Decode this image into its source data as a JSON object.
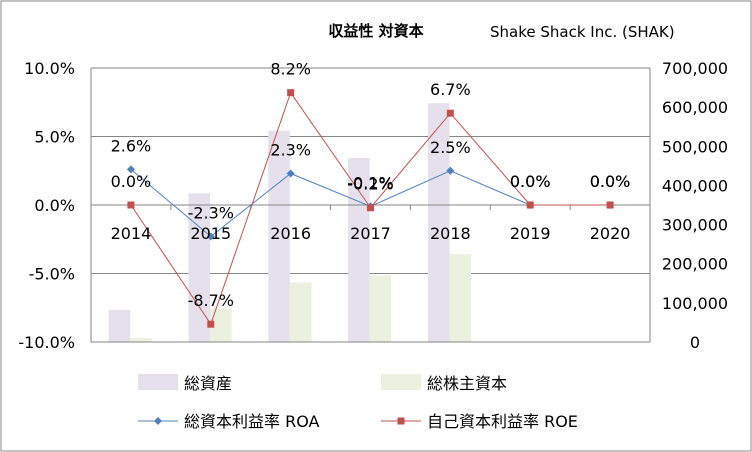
{
  "chart_data": {
    "type": "bar+line",
    "title": "収益性 対資本",
    "company": "Shake Shack Inc. (SHAK)",
    "categories": [
      "2014",
      "2015",
      "2016",
      "2017",
      "2018",
      "2019",
      "2020"
    ],
    "left_axis": {
      "min": -10.0,
      "max": 10.0,
      "step": 5.0,
      "tick_labels": [
        "10.0%",
        "5.0%",
        "0.0%",
        "-5.0%",
        "-10.0%"
      ]
    },
    "right_axis": {
      "min": 0,
      "max": 700000,
      "step": 100000,
      "tick_labels": [
        "700,000",
        "600,000",
        "500,000",
        "400,000",
        "300,000",
        "200,000",
        "100,000",
        "0"
      ]
    },
    "bar_series": [
      {
        "name": "総資産",
        "axis": "right",
        "color": "#E6E0EC",
        "values": [
          82000,
          380000,
          540000,
          470000,
          610000,
          null,
          null
        ]
      },
      {
        "name": "総株主資本",
        "axis": "right",
        "color": "#EBF1DE",
        "values": [
          10000,
          85000,
          152000,
          170000,
          225000,
          null,
          null
        ]
      }
    ],
    "line_series": [
      {
        "name": "総資本利益率  ROA",
        "axis": "left",
        "color": "#4F81BD",
        "marker": "diamond",
        "values": [
          2.6,
          -2.3,
          2.3,
          -0.1,
          2.5,
          0.0,
          0.0
        ],
        "labels": [
          "2.6%",
          "-2.3%",
          "2.3%",
          "-0.1%",
          "2.5%",
          "0.0%",
          "0.0%"
        ]
      },
      {
        "name": "自己資本利益率  ROE",
        "axis": "left",
        "color": "#C0504D",
        "marker": "square",
        "values": [
          0.0,
          -8.7,
          8.2,
          -0.2,
          6.7,
          0.0,
          0.0
        ],
        "labels": [
          "0.0%",
          "-8.7%",
          "8.2%",
          "-0.2%",
          "6.7%",
          "0.0%",
          "0.0%"
        ]
      }
    ],
    "legend_position": "bottom",
    "grid": true
  }
}
